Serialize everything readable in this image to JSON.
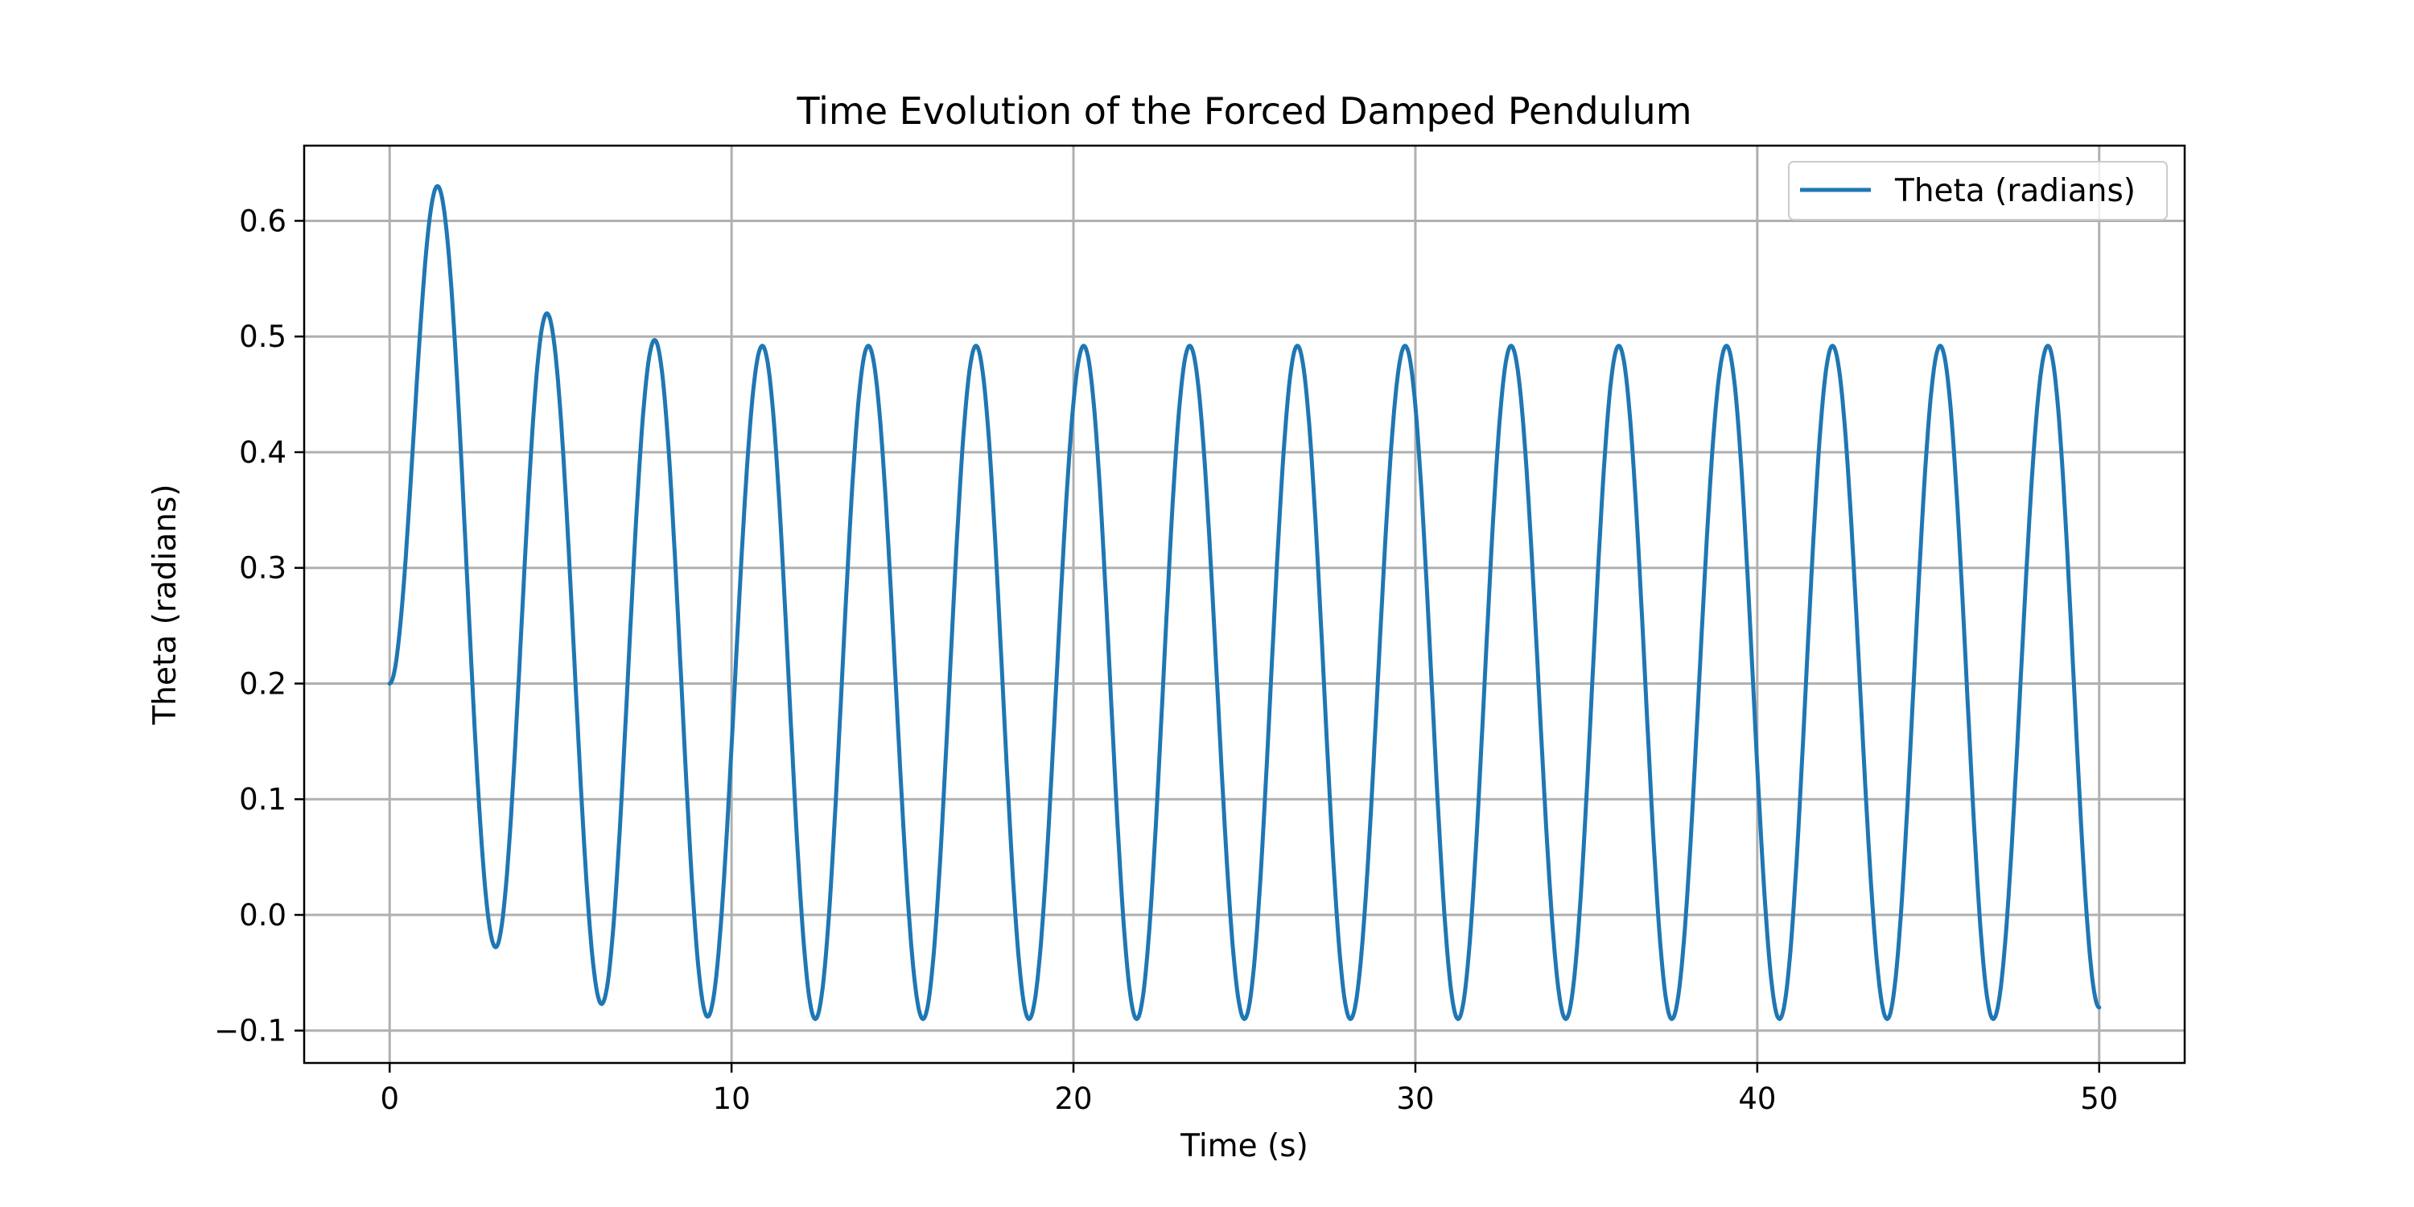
{
  "chart_data": {
    "type": "line",
    "title": "Time Evolution of the Forced Damped Pendulum",
    "xlabel": "Time (s)",
    "ylabel": "Theta (radians)",
    "xlim": [
      -2.5,
      52.5
    ],
    "ylim": [
      -0.128,
      0.665
    ],
    "xticks": [
      0,
      10,
      20,
      30,
      40,
      50
    ],
    "xtick_labels": [
      "0",
      "10",
      "20",
      "30",
      "40",
      "50"
    ],
    "yticks": [
      -0.1,
      0.0,
      0.1,
      0.2,
      0.3,
      0.4,
      0.5,
      0.6
    ],
    "ytick_labels": [
      "−0.1",
      "0.0",
      "0.1",
      "0.2",
      "0.3",
      "0.4",
      "0.5",
      "0.6"
    ],
    "grid": true,
    "legend_position": "top-right",
    "series": [
      {
        "name": "Theta (radians)",
        "color": "#1f77b4",
        "x": [
          0,
          1.4,
          3.1,
          4.6,
          6.2,
          7.75,
          9.3,
          10.9,
          12.45,
          14.0,
          15.6,
          17.15,
          18.7,
          20.3,
          21.85,
          23.4,
          25.0,
          26.55,
          28.1,
          29.7,
          31.25,
          32.8,
          34.4,
          35.95,
          37.5,
          39.1,
          40.65,
          42.2,
          43.8,
          45.35,
          46.9,
          48.5,
          50.0
        ],
        "y": [
          0.2,
          0.63,
          -0.028,
          0.52,
          -0.077,
          0.497,
          -0.088,
          0.492,
          -0.09,
          0.492,
          -0.09,
          0.492,
          -0.09,
          0.492,
          -0.09,
          0.492,
          -0.09,
          0.492,
          -0.09,
          0.492,
          -0.09,
          0.492,
          -0.09,
          0.492,
          -0.09,
          0.492,
          -0.09,
          0.492,
          -0.09,
          0.492,
          -0.09,
          0.492,
          -0.08
        ]
      }
    ]
  }
}
